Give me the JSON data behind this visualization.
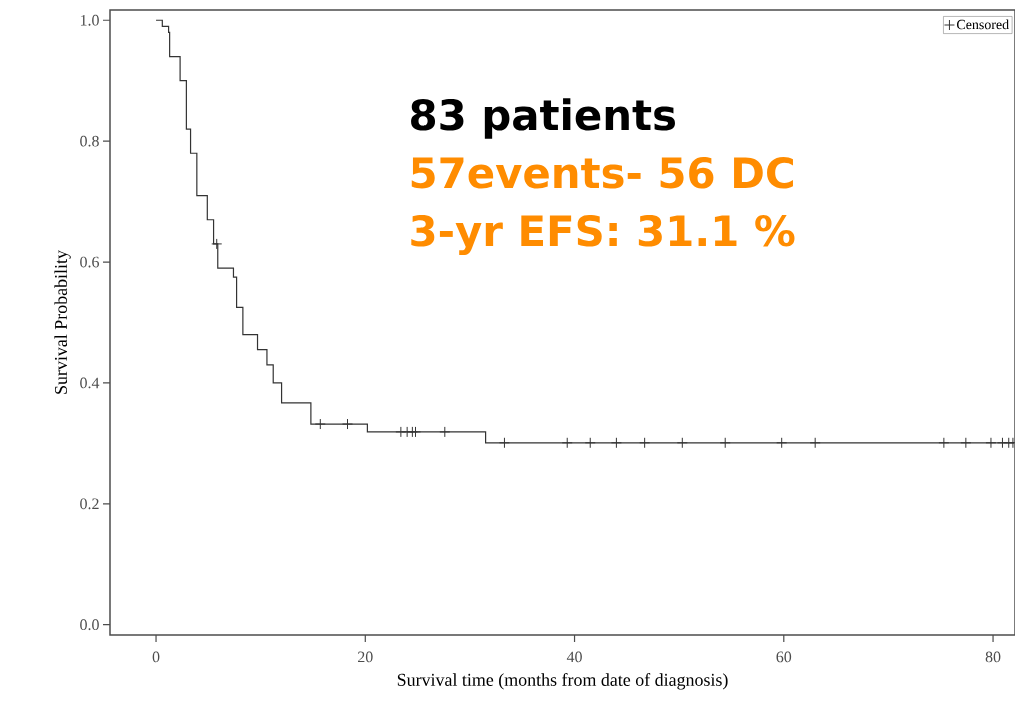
{
  "chart_data": {
    "type": "step",
    "xlabel": "Survival time (months from date of diagnosis)",
    "ylabel": "Survival Probability",
    "xlim": [
      -4.4,
      82.1
    ],
    "ylim": [
      -0.017,
      1.017
    ],
    "xticks": [
      0,
      20,
      40,
      60,
      80
    ],
    "yticks": [
      {
        "value": 0,
        "label": "0.0"
      },
      0.2,
      0.4,
      0.6,
      0.8,
      {
        "value": 1,
        "label": "1.0"
      }
    ],
    "legend": "top right",
    "grid": false,
    "series": [
      {
        "color": "#333333",
        "marker": "none",
        "x": [
          0,
          0.6,
          1.2,
          1.3,
          2.3,
          2.9,
          3.3,
          3.9,
          4.9,
          5.5,
          5.9,
          7.4,
          7.7,
          8.3,
          9.7,
          10.6,
          11.2,
          12.0,
          14.8,
          20.2,
          31.5,
          82
        ],
        "values": [
          1.0,
          0.99,
          0.98,
          0.94,
          0.9,
          0.82,
          0.78,
          0.71,
          0.67,
          0.63,
          0.59,
          0.575,
          0.525,
          0.48,
          0.455,
          0.43,
          0.4,
          0.367,
          0.332,
          0.319,
          0.301,
          0.301
        ]
      },
      {
        "type": "scatter",
        "name": "Censored",
        "color": "#333333",
        "marker": "cross",
        "x": [
          5.8,
          15.7,
          18.3,
          23.4,
          24.0,
          24.5,
          24.8,
          27.6,
          33.3,
          39.3,
          41.5,
          44.0,
          46.7,
          50.3,
          54.4,
          59.8,
          63.0,
          75.3,
          77.4,
          79.8,
          80.9,
          81.5,
          81.9
        ],
        "values": [
          0.63,
          0.332,
          0.332,
          0.319,
          0.319,
          0.319,
          0.319,
          0.319,
          0.301,
          0.301,
          0.301,
          0.301,
          0.301,
          0.301,
          0.301,
          0.301,
          0.301,
          0.301,
          0.301,
          0.301,
          0.301,
          0.301,
          0.301
        ]
      }
    ],
    "annotations": [
      "83 patients",
      "57events- 56 DC",
      "3-yr EFS: 31.1 %"
    ]
  }
}
